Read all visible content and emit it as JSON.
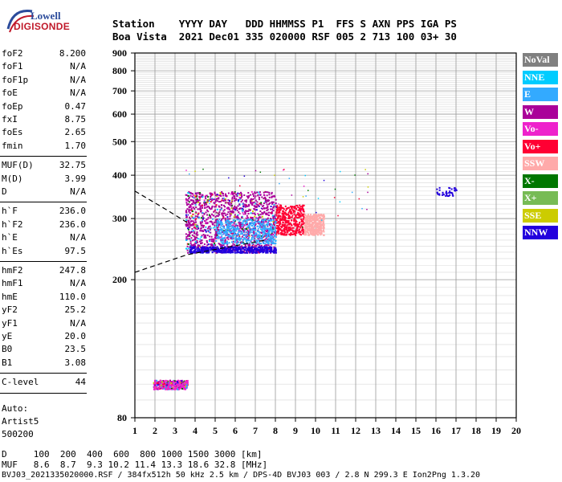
{
  "logo": {
    "line1": "Lowell",
    "line2": "DIGISONDE"
  },
  "header": {
    "line1": "Station    YYYY DAY   DDD HHMMSS P1  FFS S AXN PPS IGA PS",
    "line2": "Boa Vista  2021 Dec01 335 020000 RSF 005 2 713 100 03+ 30"
  },
  "params": {
    "group1": [
      {
        "name": "foF2",
        "value": "8.200"
      },
      {
        "name": "foF1",
        "value": "N/A"
      },
      {
        "name": "foF1p",
        "value": "N/A"
      },
      {
        "name": "foE",
        "value": "N/A"
      },
      {
        "name": "foEp",
        "value": "0.47"
      },
      {
        "name": "fxI",
        "value": "8.75"
      },
      {
        "name": "foEs",
        "value": "2.65"
      },
      {
        "name": "fmin",
        "value": "1.70"
      }
    ],
    "group2": [
      {
        "name": "MUF(D)",
        "value": "32.75"
      },
      {
        "name": "M(D)",
        "value": "3.99"
      },
      {
        "name": "D",
        "value": "N/A"
      }
    ],
    "group3": [
      {
        "name": "h`F",
        "value": "236.0"
      },
      {
        "name": "h`F2",
        "value": "236.0"
      },
      {
        "name": "h`E",
        "value": "N/A"
      },
      {
        "name": "h`Es",
        "value": "97.5"
      }
    ],
    "group4": [
      {
        "name": "hmF2",
        "value": "247.8"
      },
      {
        "name": "hmF1",
        "value": "N/A"
      },
      {
        "name": "hmE",
        "value": "110.0"
      },
      {
        "name": "yF2",
        "value": "25.2"
      },
      {
        "name": "yF1",
        "value": "N/A"
      },
      {
        "name": "yE",
        "value": "20.0"
      },
      {
        "name": "B0",
        "value": "23.5"
      },
      {
        "name": "B1",
        "value": "3.08"
      }
    ],
    "group5": [
      {
        "name": "C-level",
        "value": "44"
      }
    ],
    "auto": [
      "Auto:",
      "Artist5",
      "500200"
    ]
  },
  "legend": [
    {
      "label": "NoVal",
      "color": "#808080"
    },
    {
      "label": "NNE",
      "color": "#00ccff"
    },
    {
      "label": "E",
      "color": "#33aaff"
    },
    {
      "label": "W",
      "color": "#aa0099"
    },
    {
      "label": "Vo-",
      "color": "#ee22cc"
    },
    {
      "label": "Vo+",
      "color": "#ff0033"
    },
    {
      "label": "SSW",
      "color": "#ffaaaa"
    },
    {
      "label": "X-",
      "color": "#007700"
    },
    {
      "label": "X+",
      "color": "#77bb55"
    },
    {
      "label": "SSE",
      "color": "#cccc00"
    },
    {
      "label": "NNW",
      "color": "#2200dd"
    }
  ],
  "footer": {
    "line1": "D     100  200  400  600  800 1000 1500 3000 [km]",
    "line2": "MUF   8.6  8.7  9.3 10.2 11.4 13.3 18.6 32.8 [MHz]",
    "line3": "BVJ03_2021335020000.RSF / 384fx512h 50 kHz 2.5 km / DPS-4D BVJ03 003 / 2.8 N 299.3 E Ion2Png 1.3.20"
  },
  "chart_data": {
    "type": "scatter",
    "title": "",
    "xlabel": "",
    "ylabel": "",
    "xlim": [
      1,
      20
    ],
    "ylim": [
      80,
      900
    ],
    "y_scale": "log",
    "x_ticks": [
      1,
      2,
      3,
      4,
      5,
      6,
      7,
      8,
      9,
      10,
      11,
      12,
      13,
      14,
      15,
      16,
      17,
      18,
      19,
      20
    ],
    "y_ticks": [
      80,
      200,
      300,
      400,
      500,
      600,
      700,
      800,
      900
    ],
    "grid": true,
    "legend_position": "right",
    "clusters": [
      {
        "name": "Es trace",
        "color": "#ee22cc",
        "x": [
          1.9,
          3.6
        ],
        "y": [
          97,
          103
        ]
      },
      {
        "name": "F trace main",
        "color": "#aa0099",
        "x": [
          3.5,
          8.0
        ],
        "y": [
          240,
          360
        ]
      },
      {
        "name": "F trace upper",
        "color": "#ff0033",
        "x": [
          8.0,
          9.4
        ],
        "y": [
          270,
          330
        ]
      },
      {
        "name": "F trace SSW",
        "color": "#ffaaaa",
        "x": [
          9.4,
          10.4
        ],
        "y": [
          270,
          310
        ]
      },
      {
        "name": "F trace NNW low",
        "color": "#2200dd",
        "x": [
          3.7,
          8.0
        ],
        "y": [
          240,
          250
        ]
      },
      {
        "name": "F2 cusp cluster",
        "color": "#2200dd",
        "x": [
          16.0,
          17.0
        ],
        "y": [
          350,
          370
        ]
      },
      {
        "name": "Scatter E",
        "color": "#33aaff",
        "x": [
          5.0,
          8.0
        ],
        "y": [
          255,
          300
        ]
      }
    ],
    "model_profile": {
      "lower_dashed": [
        [
          1.0,
          210
        ],
        [
          3.6,
          236
        ],
        [
          7.5,
          260
        ]
      ],
      "upper_dashed": [
        [
          1.0,
          360
        ],
        [
          2.5,
          320
        ],
        [
          3.7,
          290
        ]
      ]
    }
  }
}
